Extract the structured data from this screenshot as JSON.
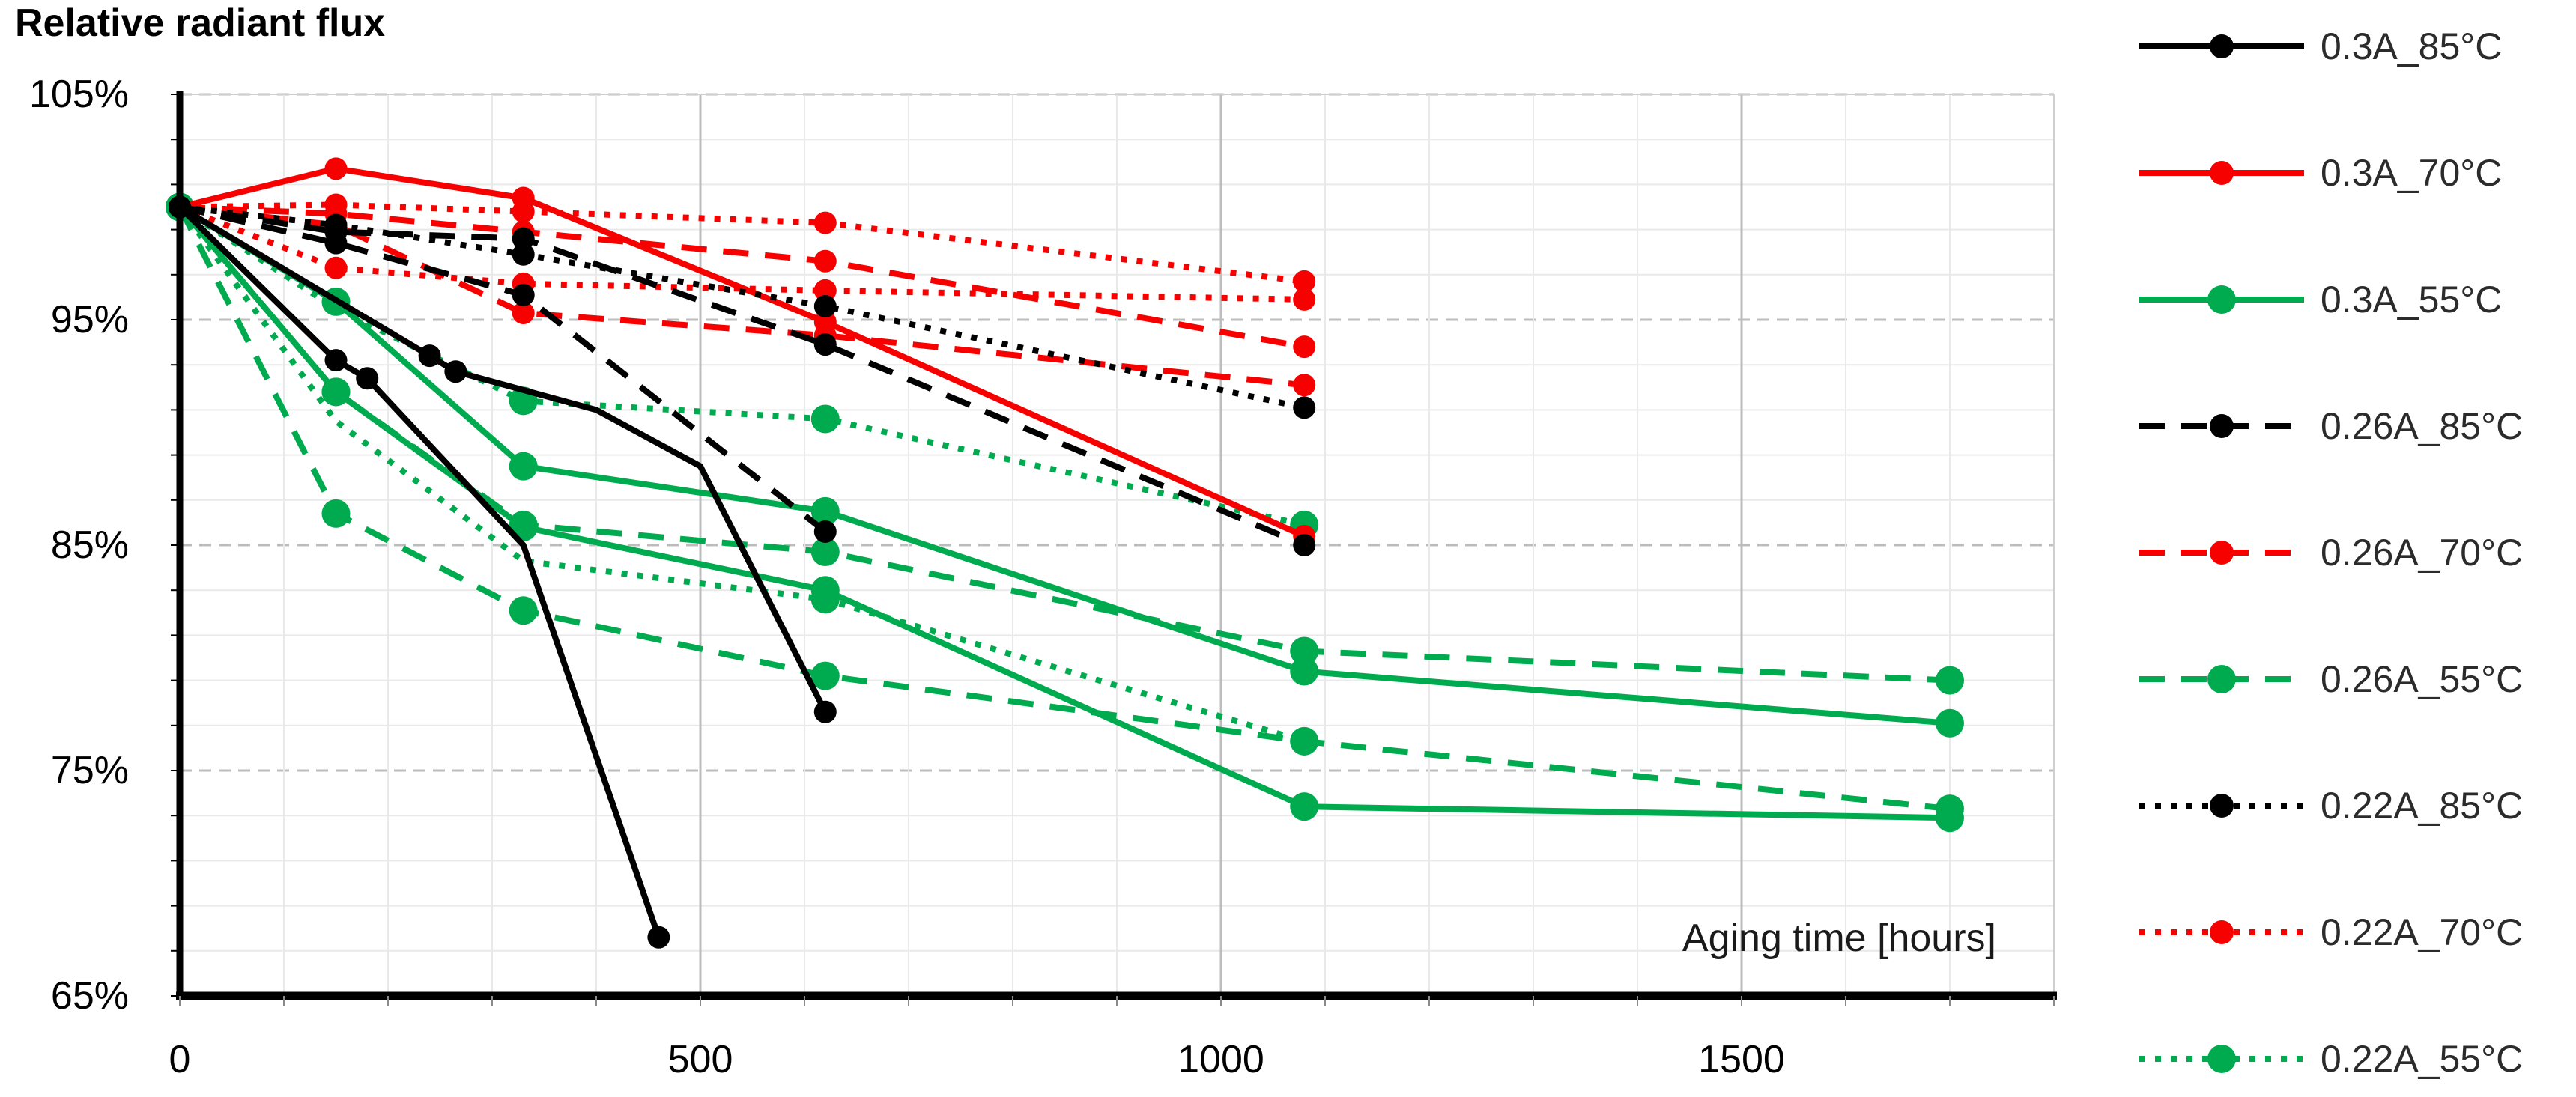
{
  "title": "Relative radiant flux",
  "chart_data": {
    "type": "line",
    "title": "Relative radiant flux",
    "xlabel": "Aging time [hours]",
    "ylabel": "Relative radiant flux",
    "xlim": [
      0,
      1800
    ],
    "ylim": [
      65,
      105
    ],
    "grid": {
      "minor_x_step": 100,
      "major_x_step": 500,
      "minor_y_step": 2,
      "major_y_step": 10,
      "minor_color": "#e9e9e9",
      "major_color": "#bdbdbd"
    },
    "x_ticks": [
      {
        "value": 0,
        "label": "0"
      },
      {
        "value": 500,
        "label": "500"
      },
      {
        "value": 1000,
        "label": "1000"
      },
      {
        "value": 1500,
        "label": "1500"
      }
    ],
    "y_ticks": [
      {
        "value": 105,
        "label": "105%"
      },
      {
        "value": 95,
        "label": "95%"
      },
      {
        "value": 85,
        "label": "85%"
      },
      {
        "value": 75,
        "label": "75%"
      },
      {
        "value": 65,
        "label": "65%"
      }
    ],
    "legend_position": "right",
    "legend": [
      {
        "label": "0.3A_85°C",
        "color": "#000000",
        "style": "solid"
      },
      {
        "label": "0.3A_70°C",
        "color": "#f70000",
        "style": "solid"
      },
      {
        "label": "0.3A_55°C",
        "color": "#00ab50",
        "style": "solid"
      },
      {
        "label": "0.26A_85°C",
        "color": "#000000",
        "style": "dash"
      },
      {
        "label": "0.26A_70°C",
        "color": "#f70000",
        "style": "dash"
      },
      {
        "label": "0.26A_55°C",
        "color": "#00ab50",
        "style": "dash"
      },
      {
        "label": "0.22A_85°C",
        "color": "#000000",
        "style": "dot"
      },
      {
        "label": "0.22A_70°C",
        "color": "#f70000",
        "style": "dot"
      },
      {
        "label": "0.22A_55°C",
        "color": "#00ab50",
        "style": "dot"
      }
    ],
    "series": [
      {
        "name": "0.22A_55°C",
        "sample": 1,
        "color": "#00ab50",
        "style": "dot",
        "points": [
          [
            0,
            100
          ],
          [
            150,
            95.5,
            0
          ],
          [
            330,
            91.4
          ],
          [
            620,
            90.6
          ],
          [
            1080,
            85.9
          ]
        ]
      },
      {
        "name": "0.22A_55°C",
        "sample": 2,
        "color": "#00ab50",
        "style": "dot",
        "points": [
          [
            0,
            100
          ],
          [
            150,
            90.5,
            0
          ],
          [
            330,
            84.3,
            0
          ],
          [
            620,
            82.6
          ],
          [
            1080,
            76.3
          ]
        ]
      },
      {
        "name": "0.26A_55°C",
        "sample": 1,
        "color": "#00ab50",
        "style": "dash",
        "points": [
          [
            0,
            100
          ],
          [
            150,
            91.8
          ],
          [
            330,
            85.9
          ],
          [
            620,
            84.7
          ],
          [
            1080,
            80.3
          ],
          [
            1700,
            79.0
          ]
        ]
      },
      {
        "name": "0.26A_55°C",
        "sample": 2,
        "color": "#00ab50",
        "style": "dash",
        "points": [
          [
            0,
            100
          ],
          [
            150,
            86.4
          ],
          [
            330,
            82.1
          ],
          [
            620,
            79.2
          ],
          [
            1080,
            76.3
          ],
          [
            1700,
            73.3
          ]
        ]
      },
      {
        "name": "0.3A_55°C",
        "sample": 1,
        "color": "#00ab50",
        "style": "solid",
        "points": [
          [
            0,
            100
          ],
          [
            150,
            95.8
          ],
          [
            330,
            88.5
          ],
          [
            620,
            86.5
          ],
          [
            1080,
            79.4
          ],
          [
            1700,
            77.1
          ]
        ]
      },
      {
        "name": "0.3A_55°C",
        "sample": 2,
        "color": "#00ab50",
        "style": "solid",
        "points": [
          [
            0,
            100
          ],
          [
            150,
            91.8
          ],
          [
            330,
            85.8
          ],
          [
            620,
            83.0
          ],
          [
            1080,
            73.4
          ],
          [
            1700,
            72.9
          ]
        ]
      },
      {
        "name": "0.22A_70°C",
        "sample": 1,
        "color": "#f70000",
        "style": "dot",
        "points": [
          [
            0,
            100
          ],
          [
            150,
            100.1
          ],
          [
            330,
            99.8
          ],
          [
            620,
            99.3
          ],
          [
            1080,
            96.7
          ]
        ]
      },
      {
        "name": "0.22A_70°C",
        "sample": 2,
        "color": "#f70000",
        "style": "dot",
        "points": [
          [
            0,
            100
          ],
          [
            150,
            97.3
          ],
          [
            330,
            96.6
          ],
          [
            620,
            96.3
          ],
          [
            1080,
            95.9
          ]
        ]
      },
      {
        "name": "0.26A_70°C",
        "sample": 1,
        "color": "#f70000",
        "style": "dash",
        "points": [
          [
            0,
            100
          ],
          [
            150,
            99.7
          ],
          [
            330,
            98.9
          ],
          [
            620,
            97.6
          ],
          [
            1080,
            93.8
          ]
        ]
      },
      {
        "name": "0.26A_70°C",
        "sample": 2,
        "color": "#f70000",
        "style": "dash",
        "points": [
          [
            0,
            100
          ],
          [
            150,
            99.2
          ],
          [
            330,
            95.3
          ],
          [
            620,
            94.3
          ],
          [
            1080,
            92.1
          ]
        ]
      },
      {
        "name": "0.3A_70°C",
        "sample": 1,
        "color": "#f70000",
        "style": "solid",
        "points": [
          [
            0,
            100
          ],
          [
            150,
            101.7
          ],
          [
            330,
            100.4
          ],
          [
            620,
            94.9
          ],
          [
            1080,
            85.4
          ]
        ]
      },
      {
        "name": "0.22A_85°C",
        "sample": 1,
        "color": "#000000",
        "style": "dot",
        "points": [
          [
            0,
            100
          ],
          [
            150,
            99.2
          ],
          [
            330,
            97.9
          ],
          [
            620,
            95.6
          ],
          [
            1080,
            91.1
          ]
        ]
      },
      {
        "name": "0.26A_85°C",
        "sample": 1,
        "color": "#000000",
        "style": "dash",
        "points": [
          [
            0,
            100
          ],
          [
            150,
            98.9
          ],
          [
            330,
            98.6
          ],
          [
            620,
            93.9
          ],
          [
            1080,
            85.0
          ]
        ]
      },
      {
        "name": "0.26A_85°C",
        "sample": 2,
        "color": "#000000",
        "style": "dash",
        "points": [
          [
            0,
            100
          ],
          [
            150,
            98.4
          ],
          [
            330,
            96.1
          ],
          [
            620,
            85.6
          ]
        ]
      },
      {
        "name": "0.3A_85°C",
        "sample": 1,
        "color": "#000000",
        "style": "solid",
        "points": [
          [
            0,
            100
          ],
          [
            150,
            93.2
          ],
          [
            180,
            92.4
          ],
          [
            330,
            85.0,
            0
          ],
          [
            460,
            67.6
          ]
        ]
      },
      {
        "name": "0.3A_85°C",
        "sample": 2,
        "color": "#000000",
        "style": "solid",
        "points": [
          [
            0,
            100
          ],
          [
            240,
            93.4
          ],
          [
            265,
            92.7
          ],
          [
            400,
            91.0,
            0
          ],
          [
            500,
            88.5,
            0
          ],
          [
            620,
            77.6
          ]
        ]
      }
    ]
  }
}
